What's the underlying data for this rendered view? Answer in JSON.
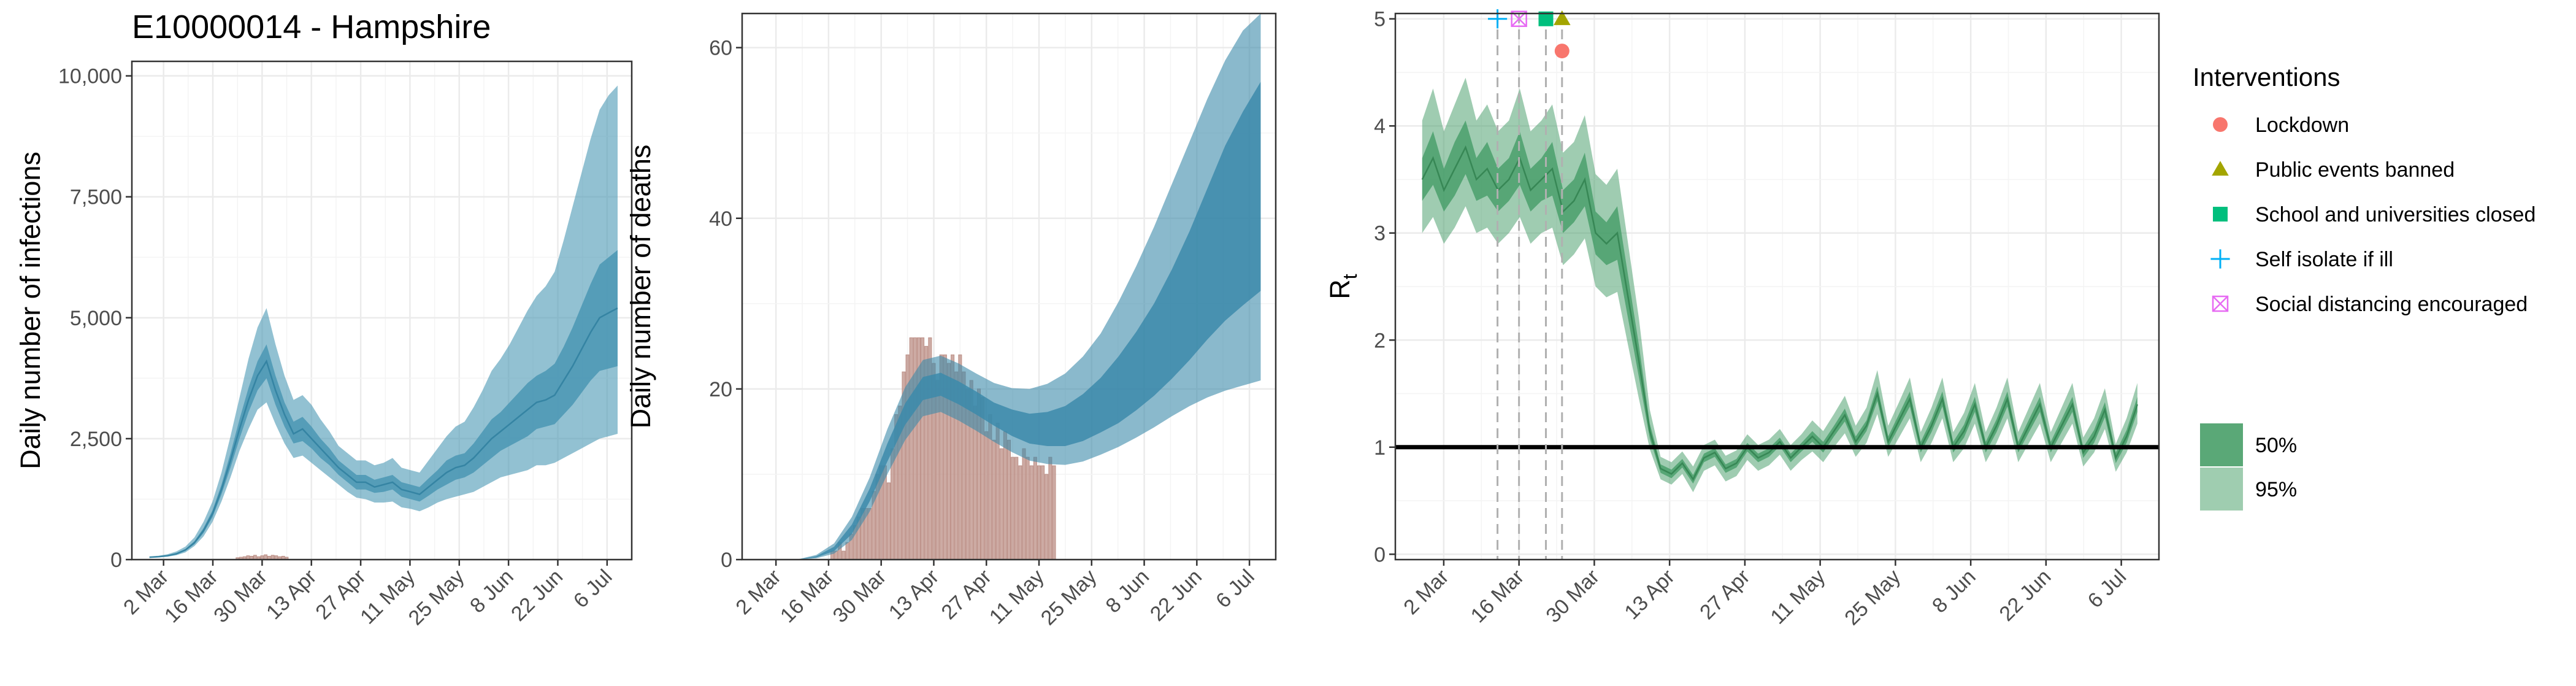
{
  "page": {
    "title": "E10000014 - Hampshire"
  },
  "colors": {
    "infections": "#4a97b4",
    "deaths_band": "#3c8aaa",
    "reported": "#bc8f86",
    "rt": "#3f9a63",
    "lockdown": "#f8766d",
    "public_events": "#a3a500",
    "schools": "#00bf7d",
    "self_isolate": "#00b0f6",
    "social_distancing": "#e76bf3"
  },
  "chart_data": [
    {
      "id": "infections",
      "type": "area",
      "title": "E10000014 - Hampshire",
      "xlabel": "",
      "ylabel": "Daily number of infections",
      "x_ticks": [
        "2 Mar",
        "16 Mar",
        "30 Mar",
        "13 Apr",
        "27 Apr",
        "11 May",
        "25 May",
        "8 Jun",
        "22 Jun",
        "6 Jul"
      ],
      "y_ticks": [
        "0",
        "2,500",
        "5,000",
        "7,500",
        "10,000"
      ],
      "xlim": [
        "2020-02-22",
        "2020-07-13"
      ],
      "ylim": [
        0,
        10300
      ],
      "grid": true,
      "series_x_range": [
        "2020-02-27",
        "2020-07-09"
      ],
      "series": [
        {
          "kind": "median",
          "values": [
            50,
            60,
            80,
            120,
            200,
            350,
            600,
            950,
            1450,
            2050,
            2700,
            3300,
            3800,
            4100,
            3500,
            3000,
            2600,
            2700,
            2500,
            2300,
            2100,
            1900,
            1750,
            1600,
            1600,
            1500,
            1550,
            1600,
            1450,
            1400,
            1350,
            1500,
            1650,
            1800,
            1900,
            1950,
            2100,
            2300,
            2500,
            2650,
            2800,
            2950,
            3100,
            3250,
            3300,
            3400,
            3700,
            4000,
            4350,
            4700,
            5000,
            5100,
            5200
          ]
        },
        {
          "kind": "50%",
          "lower": [
            45,
            55,
            70,
            105,
            180,
            320,
            550,
            880,
            1350,
            1900,
            2500,
            3050,
            3500,
            3750,
            3200,
            2750,
            2400,
            2450,
            2300,
            2100,
            1950,
            1750,
            1600,
            1450,
            1450,
            1380,
            1400,
            1450,
            1300,
            1250,
            1200,
            1320,
            1450,
            1550,
            1650,
            1700,
            1800,
            1950,
            2100,
            2250,
            2350,
            2450,
            2550,
            2700,
            2750,
            2800,
            3000,
            3200,
            3450,
            3700,
            3900,
            3950,
            4000
          ],
          "upper": [
            55,
            65,
            90,
            135,
            220,
            380,
            650,
            1020,
            1550,
            2200,
            2900,
            3550,
            4100,
            4450,
            3800,
            3250,
            2850,
            2950,
            2750,
            2500,
            2300,
            2050,
            1900,
            1750,
            1750,
            1650,
            1700,
            1750,
            1600,
            1550,
            1500,
            1680,
            1850,
            2050,
            2150,
            2200,
            2400,
            2650,
            2900,
            3050,
            3250,
            3450,
            3650,
            3800,
            3900,
            4050,
            4400,
            4800,
            5250,
            5700,
            6100,
            6250,
            6400
          ]
        },
        {
          "kind": "95%",
          "lower": [
            35,
            45,
            60,
            90,
            150,
            280,
            480,
            780,
            1200,
            1700,
            2250,
            2700,
            3100,
            3250,
            2800,
            2400,
            2100,
            2150,
            2000,
            1850,
            1700,
            1550,
            1400,
            1280,
            1250,
            1180,
            1180,
            1200,
            1080,
            1050,
            1000,
            1080,
            1180,
            1250,
            1300,
            1350,
            1400,
            1500,
            1600,
            1700,
            1750,
            1800,
            1850,
            1950,
            1950,
            2000,
            2100,
            2200,
            2300,
            2400,
            2500,
            2550,
            2600
          ],
          "upper": [
            65,
            80,
            110,
            170,
            270,
            460,
            780,
            1200,
            1800,
            2550,
            3350,
            4150,
            4800,
            5200,
            4450,
            3800,
            3300,
            3400,
            3200,
            2900,
            2650,
            2350,
            2200,
            2050,
            2050,
            1950,
            2000,
            2100,
            1900,
            1850,
            1800,
            2050,
            2300,
            2550,
            2750,
            2850,
            3150,
            3500,
            3900,
            4150,
            4450,
            4800,
            5150,
            5450,
            5650,
            5950,
            6600,
            7300,
            8000,
            8700,
            9300,
            9600,
            9800
          ]
        }
      ],
      "reported_x_range": [
        "2020-03-23",
        "2020-04-25"
      ],
      "reported_values": [
        40,
        50,
        60,
        80,
        70,
        90,
        60,
        80,
        100,
        70,
        90,
        80,
        60,
        70,
        50
      ]
    },
    {
      "id": "deaths",
      "type": "area",
      "xlabel": "",
      "ylabel": "Daily number of deaths",
      "x_ticks": [
        "2 Mar",
        "16 Mar",
        "30 Mar",
        "13 Apr",
        "27 Apr",
        "11 May",
        "25 May",
        "8 Jun",
        "22 Jun",
        "6 Jul"
      ],
      "y_ticks": [
        "0",
        "20",
        "40",
        "60"
      ],
      "xlim": [
        "2020-02-22",
        "2020-07-13"
      ],
      "ylim": [
        0,
        64
      ],
      "grid": true,
      "series_x_range": [
        "2020-03-08",
        "2020-07-09"
      ],
      "series": [
        {
          "kind": "median",
          "values": [
            0.02,
            0.3,
            1.2,
            3.5,
            7.5,
            12.5,
            17,
            20,
            20.5,
            19.5,
            18.3,
            17,
            16,
            15.3,
            15.2,
            15.5,
            16.5,
            18,
            19.8,
            22,
            24.5,
            27.5,
            31,
            35,
            39,
            42,
            45
          ]
        },
        {
          "kind": "50%",
          "lower": [
            0.01,
            0.25,
            1.0,
            3.0,
            6.8,
            11.5,
            15.8,
            18.7,
            19.2,
            18.2,
            17.0,
            15.7,
            14.5,
            13.6,
            13.3,
            13.3,
            13.9,
            14.9,
            16.0,
            17.5,
            19.2,
            21.2,
            23.4,
            25.8,
            28.0,
            29.8,
            31.5
          ],
          "upper": [
            0.03,
            0.4,
            1.5,
            4.1,
            8.3,
            13.6,
            18.3,
            21.4,
            21.9,
            20.9,
            19.7,
            18.4,
            17.6,
            17.1,
            17.3,
            18.0,
            19.4,
            21.3,
            23.8,
            26.7,
            30.0,
            34.0,
            38.5,
            43.5,
            48.5,
            52.5,
            56.0
          ]
        },
        {
          "kind": "95%",
          "lower": [
            0.0,
            0.15,
            0.7,
            2.3,
            5.6,
            10.0,
            14.0,
            16.8,
            17.3,
            16.3,
            15.1,
            13.8,
            12.6,
            11.6,
            11.2,
            11.1,
            11.5,
            12.3,
            13.2,
            14.3,
            15.5,
            16.8,
            18.0,
            19.0,
            19.8,
            20.4,
            21.0
          ],
          "upper": [
            0.05,
            0.55,
            1.9,
            5.0,
            9.6,
            15.3,
            20.2,
            23.4,
            23.9,
            23.0,
            21.8,
            20.7,
            20.1,
            20.0,
            20.6,
            21.8,
            23.8,
            26.5,
            30.2,
            34.4,
            39.0,
            44.0,
            49.0,
            54.0,
            58.5,
            62.0,
            64.0
          ]
        }
      ],
      "reported_x_range": [
        "2020-03-17",
        "2020-05-15"
      ],
      "reported_values": [
        1,
        1,
        2,
        1,
        2,
        3,
        4,
        5,
        6,
        6,
        6,
        8,
        10,
        11,
        11,
        9,
        13,
        17,
        18,
        22,
        24,
        26,
        26,
        26,
        26,
        25,
        26,
        23,
        21,
        24,
        24,
        23,
        24,
        22,
        24,
        22,
        20,
        21,
        18,
        20,
        19,
        15,
        17,
        14,
        16,
        13,
        15,
        14,
        12,
        12,
        11,
        13,
        12,
        11,
        12,
        11,
        11,
        10,
        12,
        11
      ]
    },
    {
      "id": "rt",
      "type": "area",
      "xlabel": "",
      "ylabel": "R",
      "ylabel_subscript": "t",
      "x_ticks": [
        "2 Mar",
        "16 Mar",
        "30 Mar",
        "13 Apr",
        "27 Apr",
        "11 May",
        "25 May",
        "8 Jun",
        "22 Jun",
        "6 Jul"
      ],
      "y_ticks": [
        "0",
        "1",
        "2",
        "3",
        "4",
        "5"
      ],
      "xlim": [
        "2020-02-22",
        "2020-07-13"
      ],
      "ylim": [
        -0.05,
        5.05
      ],
      "grid": true,
      "reference_line": 1,
      "series_x_range": [
        "2020-02-27",
        "2020-07-09"
      ],
      "series": [
        {
          "kind": "median",
          "values": [
            3.5,
            3.7,
            3.4,
            3.6,
            3.8,
            3.5,
            3.6,
            3.4,
            3.5,
            3.7,
            3.4,
            3.5,
            3.6,
            3.2,
            3.3,
            3.5,
            3.0,
            2.9,
            3.0,
            2.4,
            1.8,
            1.15,
            0.8,
            0.75,
            0.85,
            0.7,
            0.9,
            0.95,
            0.8,
            0.85,
            1.0,
            0.9,
            0.95,
            1.05,
            0.9,
            1.0,
            1.1,
            1.0,
            1.15,
            1.3,
            1.05,
            1.2,
            1.5,
            1.05,
            1.25,
            1.45,
            1.0,
            1.2,
            1.45,
            1.0,
            1.15,
            1.4,
            1.0,
            1.2,
            1.45,
            1.0,
            1.2,
            1.4,
            1.0,
            1.2,
            1.4,
            0.95,
            1.1,
            1.35,
            0.9,
            1.1,
            1.4
          ]
        },
        {
          "kind": "50%",
          "lower": [
            3.3,
            3.45,
            3.2,
            3.35,
            3.55,
            3.3,
            3.35,
            3.2,
            3.3,
            3.45,
            3.2,
            3.3,
            3.35,
            3.0,
            3.1,
            3.25,
            2.8,
            2.7,
            2.75,
            2.2,
            1.65,
            1.08,
            0.76,
            0.71,
            0.81,
            0.66,
            0.86,
            0.91,
            0.76,
            0.81,
            0.96,
            0.86,
            0.91,
            1.01,
            0.86,
            0.96,
            1.05,
            0.95,
            1.1,
            1.24,
            1.0,
            1.15,
            1.43,
            1.0,
            1.19,
            1.38,
            0.95,
            1.14,
            1.38,
            0.95,
            1.09,
            1.33,
            0.95,
            1.14,
            1.38,
            0.95,
            1.14,
            1.33,
            0.95,
            1.14,
            1.33,
            0.9,
            1.04,
            1.28,
            0.85,
            1.04,
            1.33
          ],
          "upper": [
            3.7,
            3.95,
            3.6,
            3.85,
            4.05,
            3.7,
            3.85,
            3.6,
            3.7,
            3.95,
            3.6,
            3.7,
            3.85,
            3.4,
            3.5,
            3.75,
            3.2,
            3.1,
            3.25,
            2.6,
            1.95,
            1.22,
            0.84,
            0.79,
            0.89,
            0.74,
            0.94,
            0.99,
            0.84,
            0.89,
            1.04,
            0.94,
            0.99,
            1.09,
            0.94,
            1.04,
            1.15,
            1.05,
            1.2,
            1.36,
            1.1,
            1.25,
            1.57,
            1.1,
            1.31,
            1.52,
            1.05,
            1.26,
            1.52,
            1.05,
            1.21,
            1.47,
            1.05,
            1.26,
            1.52,
            1.05,
            1.26,
            1.47,
            1.05,
            1.26,
            1.47,
            1.0,
            1.16,
            1.42,
            0.95,
            1.16,
            1.47
          ]
        },
        {
          "kind": "95%",
          "lower": [
            3.0,
            3.15,
            2.9,
            3.05,
            3.25,
            3.0,
            3.05,
            2.9,
            3.0,
            3.15,
            2.9,
            3.0,
            3.05,
            2.7,
            2.8,
            2.95,
            2.5,
            2.4,
            2.45,
            1.95,
            1.45,
            0.98,
            0.7,
            0.65,
            0.75,
            0.58,
            0.78,
            0.83,
            0.68,
            0.73,
            0.88,
            0.78,
            0.83,
            0.93,
            0.78,
            0.88,
            0.96,
            0.86,
            1.0,
            1.13,
            0.91,
            1.04,
            1.31,
            0.91,
            1.09,
            1.27,
            0.86,
            1.04,
            1.27,
            0.86,
            0.99,
            1.22,
            0.86,
            1.04,
            1.27,
            0.86,
            1.04,
            1.22,
            0.86,
            1.04,
            1.22,
            0.82,
            0.95,
            1.17,
            0.77,
            0.95,
            1.22
          ],
          "upper": [
            4.05,
            4.35,
            3.95,
            4.2,
            4.45,
            4.05,
            4.2,
            3.95,
            4.05,
            4.35,
            3.95,
            4.05,
            4.2,
            3.75,
            3.85,
            4.1,
            3.55,
            3.45,
            3.6,
            2.9,
            2.2,
            1.35,
            0.91,
            0.86,
            0.96,
            0.82,
            1.02,
            1.07,
            0.92,
            0.97,
            1.12,
            1.02,
            1.07,
            1.17,
            1.02,
            1.12,
            1.25,
            1.15,
            1.31,
            1.48,
            1.2,
            1.37,
            1.72,
            1.2,
            1.42,
            1.65,
            1.14,
            1.37,
            1.65,
            1.14,
            1.32,
            1.6,
            1.14,
            1.37,
            1.65,
            1.14,
            1.37,
            1.6,
            1.14,
            1.37,
            1.6,
            1.09,
            1.27,
            1.55,
            1.03,
            1.27,
            1.6
          ]
        }
      ],
      "interventions": [
        {
          "name": "Self isolate if ill",
          "date": "2020-03-12",
          "level": 5.0,
          "symbol": "plus",
          "color": "#00b0f6"
        },
        {
          "name": "Social distancing encouraged",
          "date": "2020-03-16",
          "level": 5.0,
          "symbol": "boxx",
          "color": "#e76bf3"
        },
        {
          "name": "School and universities closed",
          "date": "2020-03-21",
          "level": 5.0,
          "symbol": "square",
          "color": "#00bf7d"
        },
        {
          "name": "Public events banned",
          "date": "2020-03-24",
          "level": 5.0,
          "symbol": "triangle",
          "color": "#a3a500"
        },
        {
          "name": "Lockdown",
          "date": "2020-03-24",
          "level": 4.7,
          "symbol": "circle",
          "color": "#f8766d"
        }
      ]
    }
  ],
  "legend": {
    "title": "Interventions",
    "items": [
      {
        "label": "Lockdown",
        "symbol": "circle",
        "color": "#f8766d"
      },
      {
        "label": "Public events banned",
        "symbol": "triangle",
        "color": "#a3a500"
      },
      {
        "label": "School and universities closed",
        "symbol": "square",
        "color": "#00bf7d"
      },
      {
        "label": "Self isolate if ill",
        "symbol": "plus",
        "color": "#00b0f6"
      },
      {
        "label": "Social distancing encouraged",
        "symbol": "boxx",
        "color": "#e76bf3"
      }
    ],
    "bands": [
      {
        "label": "50%",
        "color": "#5aa877"
      },
      {
        "label": "95%",
        "color": "#9fcdb0"
      }
    ]
  }
}
